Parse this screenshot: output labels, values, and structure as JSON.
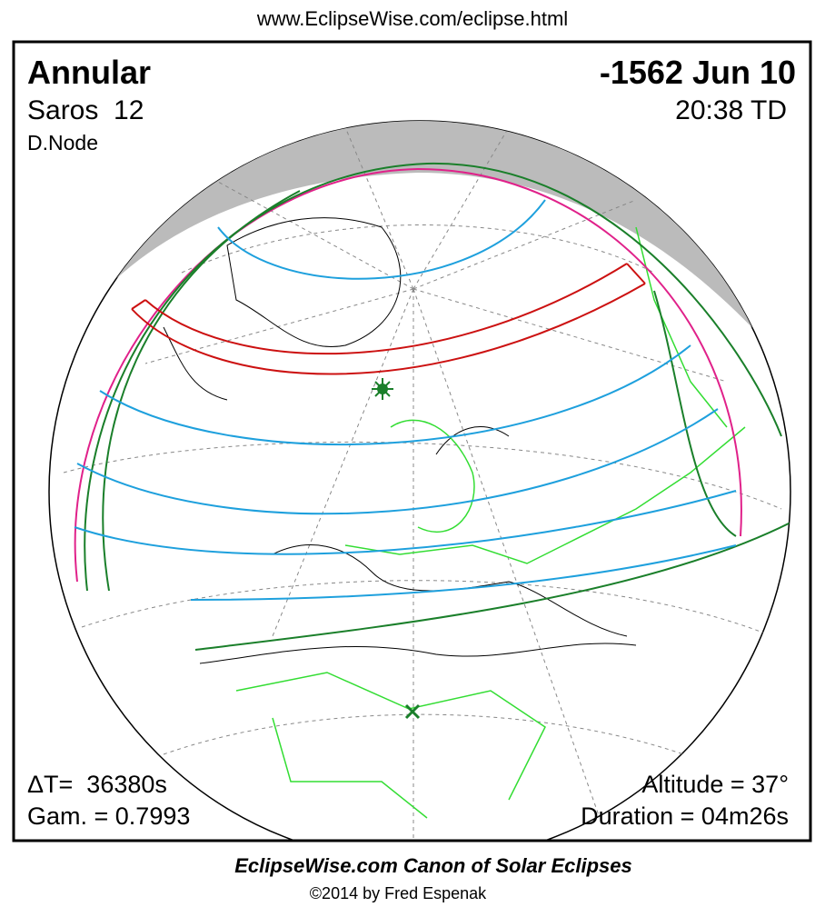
{
  "header": {
    "url": "www.EclipseWise.com/eclipse.html"
  },
  "panel": {
    "eclipse_type": "Annular",
    "saros": "Saros  12",
    "node": "D.Node",
    "date": "-1562 Jun 10",
    "time": "20:38 TD",
    "delta_t": "ΔT=  36380s",
    "gamma": "Gam. = 0.7993",
    "altitude": "Altitude = 37°",
    "duration": "Duration = 04m26s"
  },
  "footer": {
    "title": "EclipseWise.com Canon of Solar Eclipses",
    "copyright": "©2014 by Fred Espenak"
  }
}
